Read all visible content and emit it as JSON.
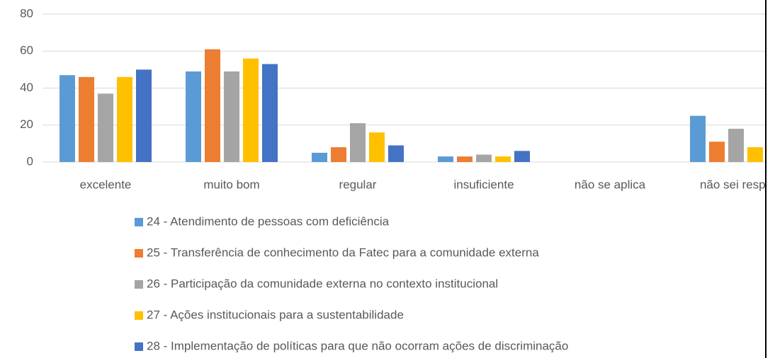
{
  "chart_data": {
    "type": "bar",
    "categories": [
      "excelente",
      "muito bom",
      "regular",
      "insuficiente",
      "não se aplica",
      "não sei respo"
    ],
    "series": [
      {
        "name": "24 - Atendimento de pessoas com deficiência",
        "color": "#5b9bd5",
        "values": [
          47,
          49,
          5,
          3,
          0,
          25
        ]
      },
      {
        "name": "25 - Transferência de conhecimento da Fatec para a comunidade externa",
        "color": "#ed7d31",
        "values": [
          46,
          61,
          8,
          3,
          0,
          11
        ]
      },
      {
        "name": "26 - Participação da comunidade externa no contexto institucional",
        "color": "#a5a5a5",
        "values": [
          37,
          49,
          21,
          4,
          0,
          18
        ]
      },
      {
        "name": "27 - Ações institucionais para a sustentabilidade",
        "color": "#ffc000",
        "values": [
          46,
          56,
          16,
          3,
          0,
          8
        ]
      },
      {
        "name": "28 - Implementação de políticas para que não ocorram ações de discriminação",
        "color": "#4472c4",
        "values": [
          50,
          53,
          9,
          6,
          0,
          null
        ]
      }
    ],
    "ylim": [
      0,
      80
    ],
    "yticks": [
      0,
      20,
      40,
      60,
      80
    ],
    "grid": true,
    "legend": "bottom"
  }
}
